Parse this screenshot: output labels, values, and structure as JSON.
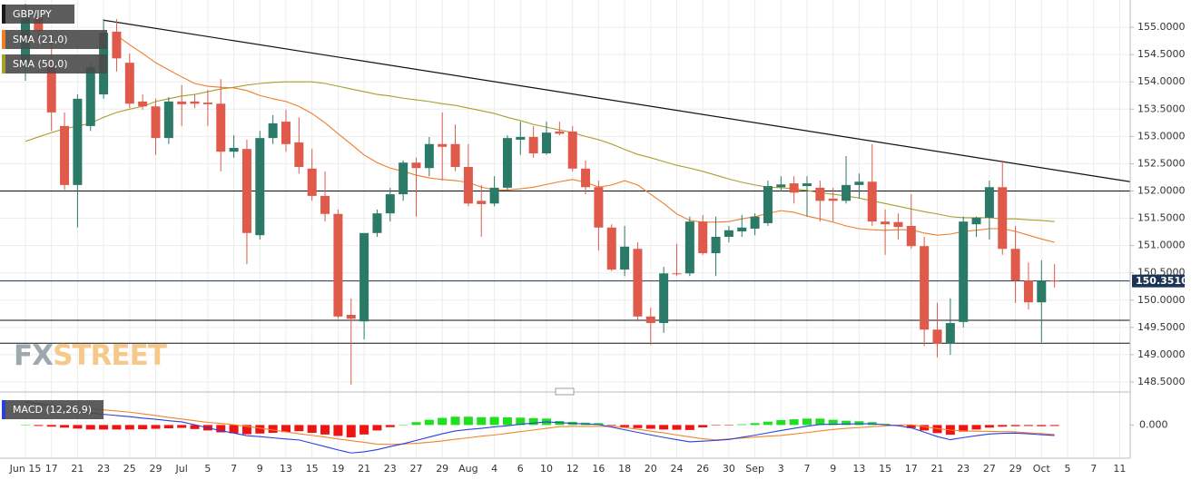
{
  "chart_data": [
    {
      "type": "candlestick",
      "name": "GBP/JPY",
      "categories": [
        "Jun 15",
        null,
        "17",
        null,
        "21",
        null,
        "23",
        null,
        "25",
        null,
        "29",
        null,
        "Jul",
        null,
        "5",
        null,
        "7",
        null,
        "9",
        null,
        "13",
        null,
        "15",
        null,
        "19",
        null,
        "21",
        null,
        "23",
        null,
        "27",
        null,
        "29",
        null,
        "Aug",
        null,
        "4",
        null,
        "6",
        null,
        "10",
        null,
        "12",
        null,
        "16",
        null,
        "18",
        null,
        "20",
        null,
        "24",
        null,
        "26",
        null,
        "30",
        null,
        "Sep",
        null,
        "3",
        null,
        "7",
        null,
        "9",
        null,
        "13",
        null,
        "15",
        null,
        "17",
        null,
        "21",
        null,
        "23",
        null,
        "27",
        null,
        "29",
        null,
        "Oct",
        null,
        "5",
        null,
        "7",
        null,
        "11"
      ],
      "open": [
        154.27,
        155.18,
        154.27,
        153.19,
        152.11,
        153.19,
        153.77,
        154.92,
        154.35,
        153.64,
        153.55,
        152.97,
        153.64,
        153.64,
        153.62,
        153.6,
        152.72,
        152.77,
        151.19,
        152.97,
        153.27,
        152.89,
        152.41,
        151.91,
        151.58,
        149.73,
        149.61,
        151.23,
        151.59,
        151.94,
        152.52,
        152.42,
        152.86,
        152.86,
        152.44,
        151.82,
        151.77,
        152.06,
        152.94,
        152.99,
        152.69,
        153.09,
        153.09,
        152.41,
        152.07,
        151.33,
        150.56,
        150.94,
        149.7,
        149.58,
        150.49,
        150.49,
        151.44,
        150.86,
        151.16,
        151.26,
        151.31,
        151.41,
        152.07,
        152.14,
        152.09,
        152.06,
        151.86,
        151.82,
        152.11,
        152.17,
        151.44,
        151.43,
        151.36,
        150.99,
        149.46,
        149.2,
        149.6,
        151.39,
        151.51,
        152.07,
        150.94,
        150.36,
        149.96,
        150.36,
        null,
        null,
        null,
        null,
        null
      ],
      "high": [
        155.43,
        155.35,
        154.77,
        153.44,
        153.77,
        154.35,
        155.15,
        155.15,
        154.52,
        153.77,
        153.69,
        153.72,
        153.94,
        153.77,
        153.85,
        154.05,
        153.02,
        152.94,
        153.1,
        153.39,
        153.49,
        153.35,
        152.77,
        152.36,
        151.66,
        150.03,
        151.19,
        151.66,
        152.06,
        152.56,
        152.61,
        152.99,
        153.44,
        153.22,
        152.86,
        152.11,
        152.27,
        153.02,
        153.27,
        153.19,
        153.27,
        153.27,
        153.19,
        152.56,
        152.19,
        151.39,
        151.36,
        151.06,
        149.86,
        150.61,
        151.03,
        151.53,
        151.56,
        151.53,
        151.36,
        151.56,
        151.59,
        152.19,
        152.27,
        152.27,
        152.27,
        152.19,
        152.06,
        152.64,
        152.32,
        152.86,
        151.66,
        151.59,
        151.94,
        151.16,
        149.95,
        150.03,
        151.53,
        151.53,
        152.19,
        152.56,
        151.36,
        150.69,
        150.73,
        150.66,
        null,
        null,
        null,
        null,
        null
      ],
      "low": [
        154.02,
        154.77,
        153.1,
        152.02,
        151.33,
        153.1,
        153.69,
        154.19,
        153.52,
        153.49,
        152.66,
        152.86,
        153.19,
        153.52,
        153.19,
        152.36,
        152.61,
        150.66,
        151.11,
        152.86,
        152.72,
        152.32,
        151.82,
        151.44,
        149.66,
        148.45,
        149.28,
        151.16,
        151.44,
        151.82,
        151.53,
        152.27,
        152.19,
        152.36,
        151.72,
        151.16,
        151.72,
        152.02,
        152.66,
        152.61,
        152.66,
        153.02,
        152.36,
        151.94,
        150.91,
        150.53,
        150.44,
        149.61,
        149.18,
        149.4,
        150.44,
        150.44,
        150.83,
        150.44,
        151.06,
        151.16,
        151.19,
        151.36,
        151.99,
        151.77,
        151.53,
        151.44,
        151.44,
        151.77,
        151.86,
        151.36,
        150.83,
        151.11,
        150.94,
        149.16,
        148.95,
        149.0,
        149.5,
        151.16,
        151.11,
        150.83,
        149.95,
        149.83,
        149.23,
        150.23,
        null,
        null,
        null,
        null,
        null
      ],
      "close": [
        155.18,
        154.93,
        153.44,
        152.11,
        153.69,
        154.27,
        154.9,
        154.43,
        153.6,
        153.55,
        152.97,
        153.64,
        153.59,
        153.6,
        153.59,
        152.72,
        152.79,
        151.23,
        152.97,
        153.24,
        152.86,
        152.44,
        151.91,
        151.58,
        149.7,
        149.66,
        151.23,
        151.59,
        151.94,
        152.52,
        152.42,
        152.86,
        152.81,
        152.44,
        151.77,
        151.76,
        152.06,
        152.97,
        152.99,
        152.69,
        153.07,
        153.05,
        152.41,
        152.07,
        151.33,
        150.56,
        150.98,
        149.7,
        149.58,
        150.49,
        150.48,
        151.44,
        150.86,
        151.16,
        151.28,
        151.33,
        151.53,
        152.09,
        152.12,
        151.97,
        152.14,
        151.82,
        151.82,
        152.11,
        152.17,
        151.44,
        151.39,
        151.34,
        150.99,
        149.46,
        149.2,
        149.58,
        151.44,
        151.51,
        152.07,
        150.94,
        150.36,
        149.96,
        150.36,
        150.351,
        null,
        null,
        null,
        null,
        null
      ],
      "up_color": "#2b7a68",
      "down_color": "#df5a4b",
      "overlays": [
        {
          "name": "SMA (21,0)",
          "color": "#ef7d2a",
          "values": [
            null,
            null,
            null,
            null,
            null,
            null,
            null,
            154.85,
            154.68,
            154.52,
            154.35,
            154.22,
            154.09,
            153.97,
            153.92,
            153.9,
            153.89,
            153.84,
            153.75,
            153.69,
            153.64,
            153.55,
            153.42,
            153.25,
            153.05,
            152.86,
            152.66,
            152.52,
            152.42,
            152.36,
            152.29,
            152.24,
            152.21,
            152.19,
            152.16,
            152.07,
            152.02,
            152.02,
            152.04,
            152.07,
            152.12,
            152.17,
            152.21,
            152.16,
            152.07,
            152.11,
            152.19,
            152.11,
            151.94,
            151.77,
            151.58,
            151.46,
            151.43,
            151.43,
            151.44,
            151.49,
            151.53,
            151.59,
            151.64,
            151.61,
            151.54,
            151.49,
            151.43,
            151.36,
            151.31,
            151.29,
            151.28,
            151.29,
            151.29,
            151.23,
            151.19,
            151.21,
            151.26,
            151.28,
            151.31,
            151.31,
            151.26,
            151.19,
            151.12,
            151.06,
            null,
            null,
            null,
            null,
            null
          ]
        },
        {
          "name": "SMA (50,0)",
          "color": "#a99e2b",
          "values": [
            152.91,
            152.99,
            153.07,
            153.14,
            153.19,
            153.24,
            153.35,
            153.44,
            153.5,
            153.55,
            153.64,
            153.69,
            153.74,
            153.77,
            153.82,
            153.87,
            153.9,
            153.94,
            153.97,
            153.99,
            154.0,
            154.0,
            154.0,
            153.97,
            153.92,
            153.87,
            153.82,
            153.77,
            153.74,
            153.7,
            153.67,
            153.64,
            153.6,
            153.57,
            153.52,
            153.47,
            153.42,
            153.35,
            153.29,
            153.22,
            153.17,
            153.12,
            153.07,
            153.0,
            152.94,
            152.86,
            152.76,
            152.67,
            152.61,
            152.54,
            152.47,
            152.42,
            152.36,
            152.29,
            152.22,
            152.16,
            152.11,
            152.07,
            152.06,
            152.04,
            152.01,
            151.97,
            151.94,
            151.91,
            151.87,
            151.82,
            151.77,
            151.72,
            151.67,
            151.62,
            151.58,
            151.53,
            151.51,
            151.51,
            151.51,
            151.49,
            151.49,
            151.47,
            151.46,
            151.44,
            null,
            null,
            null,
            null,
            null
          ]
        }
      ],
      "levels": [
        152.0,
        149.63,
        149.21
      ],
      "trend_line": [
        155.13,
        152.17
      ],
      "last_price": {
        "value": 150.351,
        "label": "150.3510"
      },
      "ylim": [
        148.35,
        155.5
      ],
      "yticks": [
        {
          "value": 148.5,
          "label": "148.5000"
        },
        {
          "value": 149,
          "label": "149.0000"
        },
        {
          "value": 149.5,
          "label": "149.5000"
        },
        {
          "value": 150,
          "label": "150.0000"
        },
        {
          "value": 150.5,
          "label": "150.5000"
        },
        {
          "value": 151,
          "label": "151.0000"
        },
        {
          "value": 151.5,
          "label": "151.5000"
        },
        {
          "value": 152,
          "label": "152.0000"
        },
        {
          "value": 152.5,
          "label": "152.5000"
        },
        {
          "value": 153,
          "label": "153.0000"
        },
        {
          "value": 153.5,
          "label": "153.5000"
        },
        {
          "value": 154,
          "label": "154.0000"
        },
        {
          "value": 154.5,
          "label": "154.5000"
        },
        {
          "value": 155,
          "label": "155.0000"
        }
      ],
      "grid": true,
      "watermark": [
        "FX",
        "STREET"
      ]
    },
    {
      "type": "macd",
      "name": "MACD (12,26,9)",
      "macd": {
        "color": "#2a3fe0",
        "values": [
          0.98,
          0.88,
          0.79,
          0.7,
          0.6,
          0.51,
          0.45,
          0.4,
          0.35,
          0.29,
          0.24,
          0.18,
          0.13,
          0.01,
          -0.12,
          -0.24,
          -0.34,
          -0.45,
          -0.49,
          -0.54,
          -0.59,
          -0.63,
          -0.77,
          -0.91,
          -1.05,
          -1.18,
          -1.13,
          -1.04,
          -0.91,
          -0.79,
          -0.65,
          -0.51,
          -0.37,
          -0.25,
          -0.19,
          -0.14,
          -0.08,
          -0.03,
          0.03,
          0.08,
          0.13,
          0.1,
          0.07,
          0.04,
          0.02,
          -0.09,
          -0.2,
          -0.31,
          -0.42,
          -0.52,
          -0.62,
          -0.71,
          -0.68,
          -0.65,
          -0.61,
          -0.52,
          -0.43,
          -0.33,
          -0.23,
          -0.14,
          -0.05,
          0.02,
          0.03,
          0.04,
          0.05,
          0.05,
          0.01,
          -0.03,
          -0.12,
          -0.3,
          -0.49,
          -0.62,
          -0.53,
          -0.45,
          -0.38,
          -0.35,
          -0.34,
          -0.37,
          -0.41,
          -0.44,
          null,
          null,
          null,
          null,
          null
        ]
      },
      "signal": {
        "color": "#f0862a",
        "values": [
          0.97,
          0.92,
          0.86,
          0.81,
          0.75,
          0.7,
          0.64,
          0.59,
          0.54,
          0.47,
          0.4,
          0.32,
          0.25,
          0.18,
          0.11,
          0.07,
          0.01,
          -0.06,
          -0.13,
          -0.21,
          -0.29,
          -0.37,
          -0.44,
          -0.51,
          -0.59,
          -0.66,
          -0.73,
          -0.81,
          -0.82,
          -0.8,
          -0.77,
          -0.73,
          -0.67,
          -0.6,
          -0.54,
          -0.47,
          -0.42,
          -0.35,
          -0.28,
          -0.21,
          -0.14,
          -0.07,
          -0.06,
          -0.06,
          -0.06,
          -0.06,
          -0.11,
          -0.18,
          -0.26,
          -0.33,
          -0.42,
          -0.5,
          -0.58,
          -0.63,
          -0.59,
          -0.55,
          -0.51,
          -0.47,
          -0.44,
          -0.38,
          -0.32,
          -0.25,
          -0.19,
          -0.14,
          -0.11,
          -0.07,
          -0.04,
          0.0,
          0.01,
          -0.07,
          -0.15,
          -0.21,
          -0.25,
          -0.26,
          -0.27,
          -0.28,
          -0.29,
          -0.33,
          -0.36,
          -0.4,
          null,
          null,
          null,
          null,
          null
        ]
      },
      "histogram": {
        "up_color": "#1fe01f",
        "down_color": "#ee1414",
        "values": [
          0.01,
          -0.04,
          -0.07,
          -0.11,
          -0.15,
          -0.19,
          -0.19,
          -0.19,
          -0.19,
          -0.18,
          -0.16,
          -0.14,
          -0.12,
          -0.17,
          -0.23,
          -0.31,
          -0.35,
          -0.39,
          -0.36,
          -0.33,
          -0.3,
          -0.26,
          -0.33,
          -0.4,
          -0.46,
          -0.52,
          -0.4,
          -0.23,
          -0.09,
          0.01,
          0.12,
          0.22,
          0.3,
          0.35,
          0.35,
          0.33,
          0.34,
          0.32,
          0.31,
          0.29,
          0.27,
          0.17,
          0.13,
          0.1,
          0.08,
          -0.03,
          -0.09,
          -0.13,
          -0.16,
          -0.19,
          -0.2,
          -0.21,
          -0.1,
          -0.02,
          -0.02,
          0.03,
          0.08,
          0.14,
          0.21,
          0.24,
          0.27,
          0.27,
          0.22,
          0.18,
          0.16,
          0.12,
          0.05,
          -0.03,
          -0.13,
          -0.23,
          -0.34,
          -0.41,
          -0.28,
          -0.19,
          -0.11,
          -0.07,
          -0.05,
          -0.04,
          -0.05,
          -0.04,
          null,
          null,
          null,
          null,
          null
        ]
      },
      "ylim": [
        -1.4,
        1.2
      ],
      "yticks": [
        {
          "value": 0,
          "label": "0.000"
        }
      ]
    }
  ]
}
